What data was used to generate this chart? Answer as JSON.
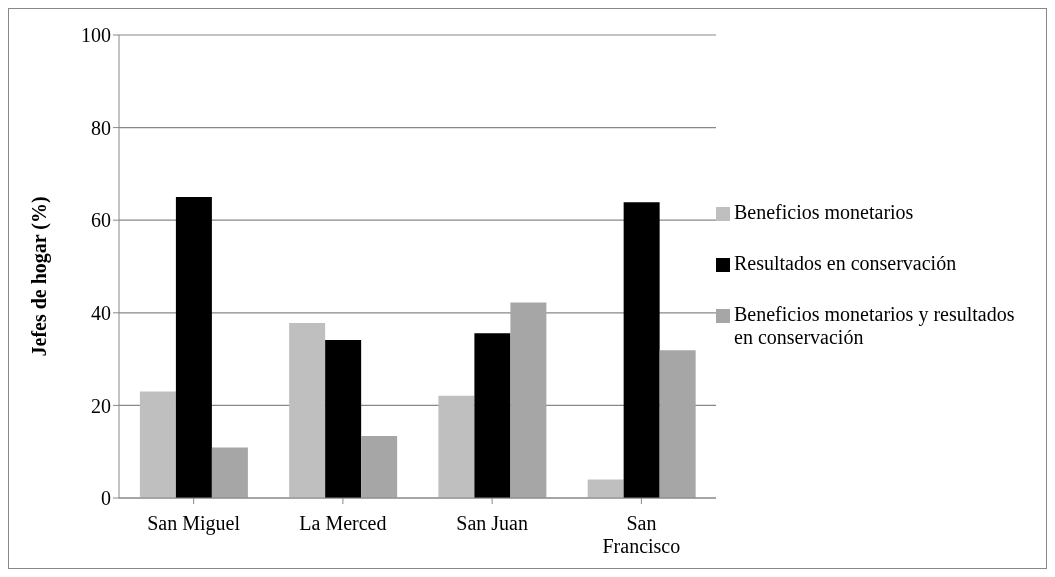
{
  "chart_data": {
    "type": "bar",
    "ylabel": "Jefes de hogar (%)",
    "categories": [
      "San Miguel",
      "La Merced",
      "San Juan",
      "San Francisco"
    ],
    "series": [
      {
        "name": "Beneficios monetarios",
        "color": "#bfbfbf",
        "values": [
          23,
          37.8,
          22.1,
          4
        ]
      },
      {
        "name": "Resultados en conservación",
        "color": "#000000",
        "values": [
          65,
          34.1,
          35.6,
          63.9
        ]
      },
      {
        "name": "Beneficios monetarios y resultados en conservación",
        "color": "#a6a6a6",
        "values": [
          10.9,
          13.4,
          42.2,
          31.9
        ]
      }
    ],
    "ylim": [
      0,
      100
    ],
    "yticks": [
      0,
      20,
      40,
      60,
      80,
      100
    ],
    "grid": "y",
    "legend": "right"
  }
}
